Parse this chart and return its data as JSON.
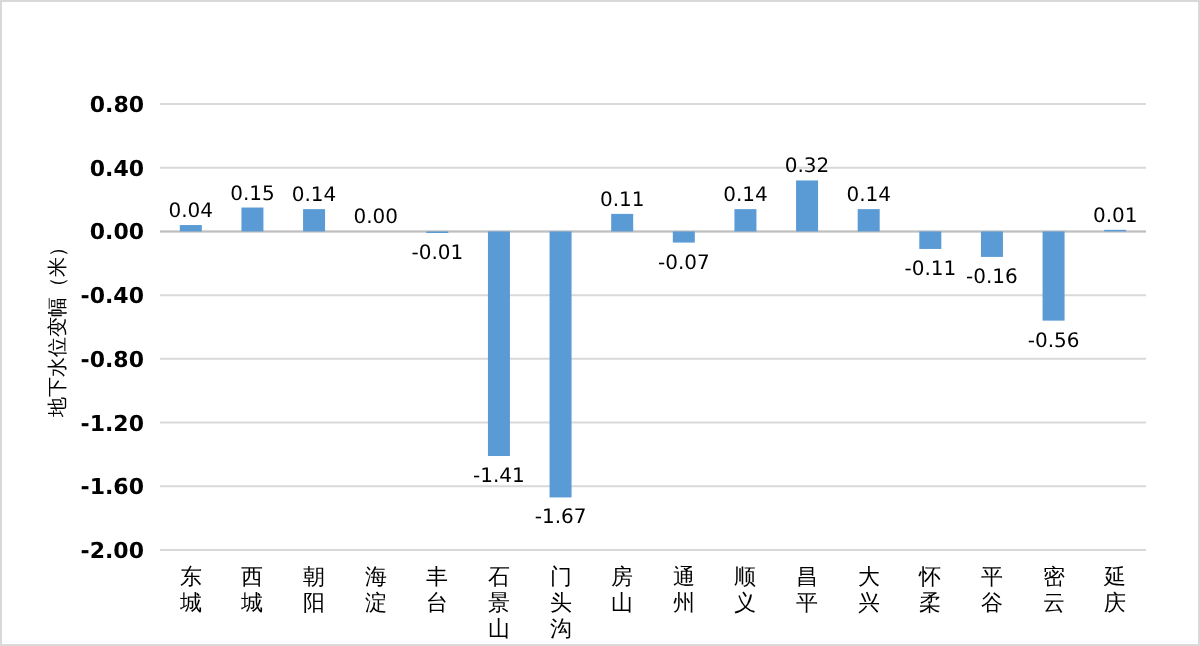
{
  "chart_data": {
    "type": "bar",
    "ylabel": "地下水位变幅（米）",
    "categories": [
      "东城",
      "西城",
      "朝阳",
      "海淀",
      "丰台",
      "石景山",
      "门头沟",
      "房山",
      "通州",
      "顺义",
      "昌平",
      "大兴",
      "怀柔",
      "平谷",
      "密云",
      "延庆"
    ],
    "series": [
      {
        "color": "#5b9bd5",
        "values": [
          0.04,
          0.15,
          0.14,
          0.0,
          -0.01,
          -1.41,
          -1.67,
          0.11,
          -0.07,
          0.14,
          0.32,
          0.14,
          -0.11,
          -0.16,
          -0.56,
          0.01
        ],
        "value_labels": [
          "0.04",
          "0.15",
          "0.14",
          "0.00",
          "-0.01",
          "-1.41",
          "-1.67",
          "0.11",
          "-0.07",
          "0.14",
          "0.32",
          "0.14",
          "-0.11",
          "-0.16",
          "-0.56",
          "0.01"
        ]
      }
    ],
    "ylim": [
      -2.0,
      0.8
    ],
    "yticks": [
      {
        "value": -2.0,
        "label": "-2.00"
      },
      {
        "value": -1.6,
        "label": "-1.60"
      },
      {
        "value": -1.2,
        "label": "-1.20"
      },
      {
        "value": -0.8,
        "label": "-0.80"
      },
      {
        "value": -0.4,
        "label": "-0.40"
      },
      {
        "value": 0,
        "label": "0.00"
      },
      {
        "value": 0.4,
        "label": "0.40"
      },
      {
        "value": 0.8,
        "label": "0.80"
      }
    ],
    "grid": "y"
  }
}
